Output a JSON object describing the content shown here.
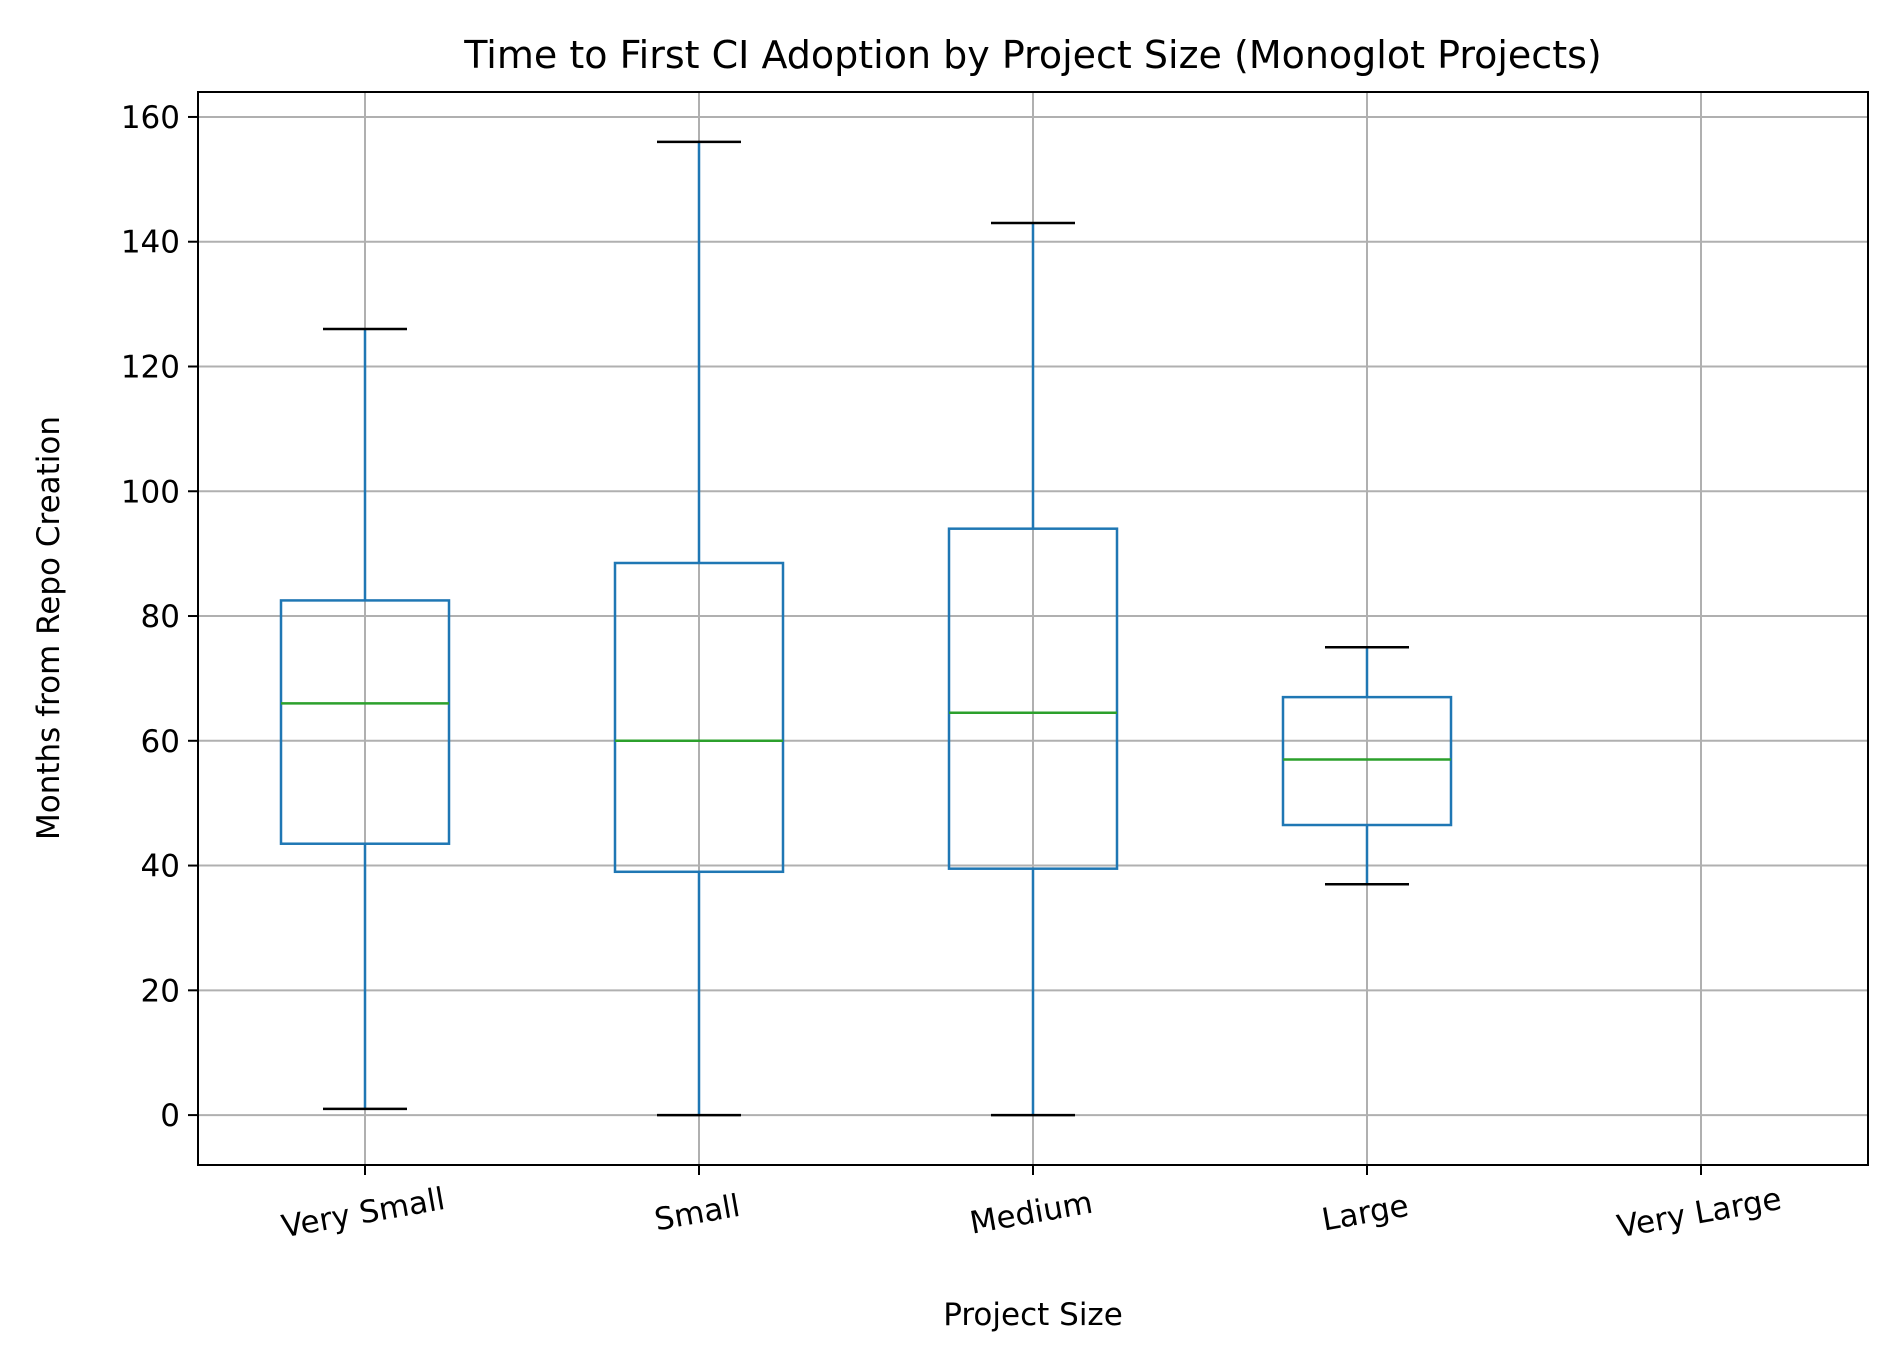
{
  "colors": {
    "box": "#1f77b4",
    "median": "#2ca02c",
    "cap": "#000000",
    "grid": "#b0b0b0",
    "axes": "#000000",
    "background": "#ffffff"
  },
  "chart_data": {
    "type": "box",
    "title": "Time to First CI Adoption by Project Size (Monoglot Projects)",
    "xlabel": "Project Size",
    "ylabel": "Months from Repo Creation",
    "categories": [
      "Very Small",
      "Small",
      "Medium",
      "Large",
      "Very Large"
    ],
    "ylim": [
      -8,
      164
    ],
    "yticks": [
      0,
      20,
      40,
      60,
      80,
      100,
      120,
      140,
      160
    ],
    "grid": true,
    "boxes": [
      {
        "category": "Very Small",
        "whisker_low": 1,
        "q1": 43.5,
        "median": 66,
        "q3": 82.5,
        "whisker_high": 126
      },
      {
        "category": "Small",
        "whisker_low": 0,
        "q1": 39,
        "median": 60,
        "q3": 88.5,
        "whisker_high": 156
      },
      {
        "category": "Medium",
        "whisker_low": 0,
        "q1": 39.5,
        "median": 64.5,
        "q3": 94,
        "whisker_high": 143
      },
      {
        "category": "Large",
        "whisker_low": 37,
        "q1": 46.5,
        "median": 57,
        "q3": 67,
        "whisker_high": 75
      },
      {
        "category": "Very Large",
        "whisker_low": null,
        "q1": null,
        "median": null,
        "q3": null,
        "whisker_high": null
      }
    ]
  }
}
